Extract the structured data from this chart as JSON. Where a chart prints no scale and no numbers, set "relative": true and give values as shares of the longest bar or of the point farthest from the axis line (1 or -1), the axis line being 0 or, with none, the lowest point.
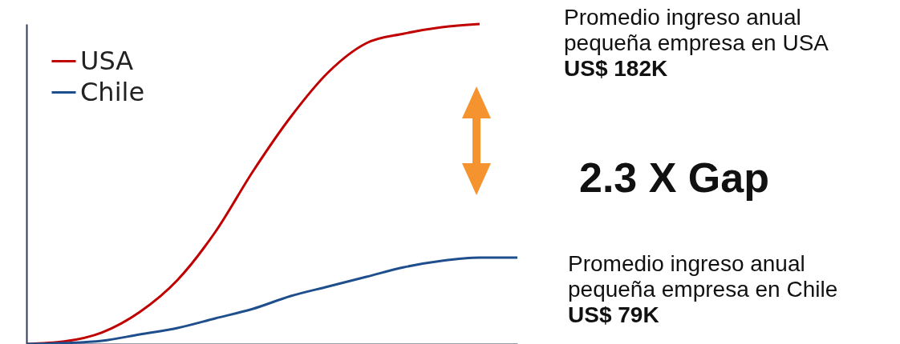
{
  "chart_data": {
    "type": "line",
    "relative": true,
    "categories": [
      null,
      null,
      null,
      null,
      null,
      null,
      null,
      null,
      null,
      null,
      null,
      null,
      null,
      null
    ],
    "series": [
      {
        "name": "USA",
        "color": "#c00000",
        "values": [
          0,
          0.008,
          0.036,
          0.1,
          0.2,
          0.35,
          0.54,
          0.71,
          0.85,
          0.94,
          0.97,
          0.99,
          1,
          null
        ]
      },
      {
        "name": "Chile",
        "color": "#1f4e8c",
        "values": [
          0,
          0.003,
          0.01,
          0.03,
          0.05,
          0.08,
          0.11,
          0.15,
          0.18,
          0.21,
          0.24,
          0.26,
          0.27,
          0.27
        ]
      }
    ],
    "legend": "top left",
    "marker": "none",
    "line_style": "solid",
    "grid": false,
    "annotations": [
      "Promedio ingreso anual pequeña empresa en USA",
      "US$ 182K",
      "2.3 X Gap",
      "Promedio ingreso anual pequeña empresa en Chile",
      "US$ 79K"
    ]
  }
}
